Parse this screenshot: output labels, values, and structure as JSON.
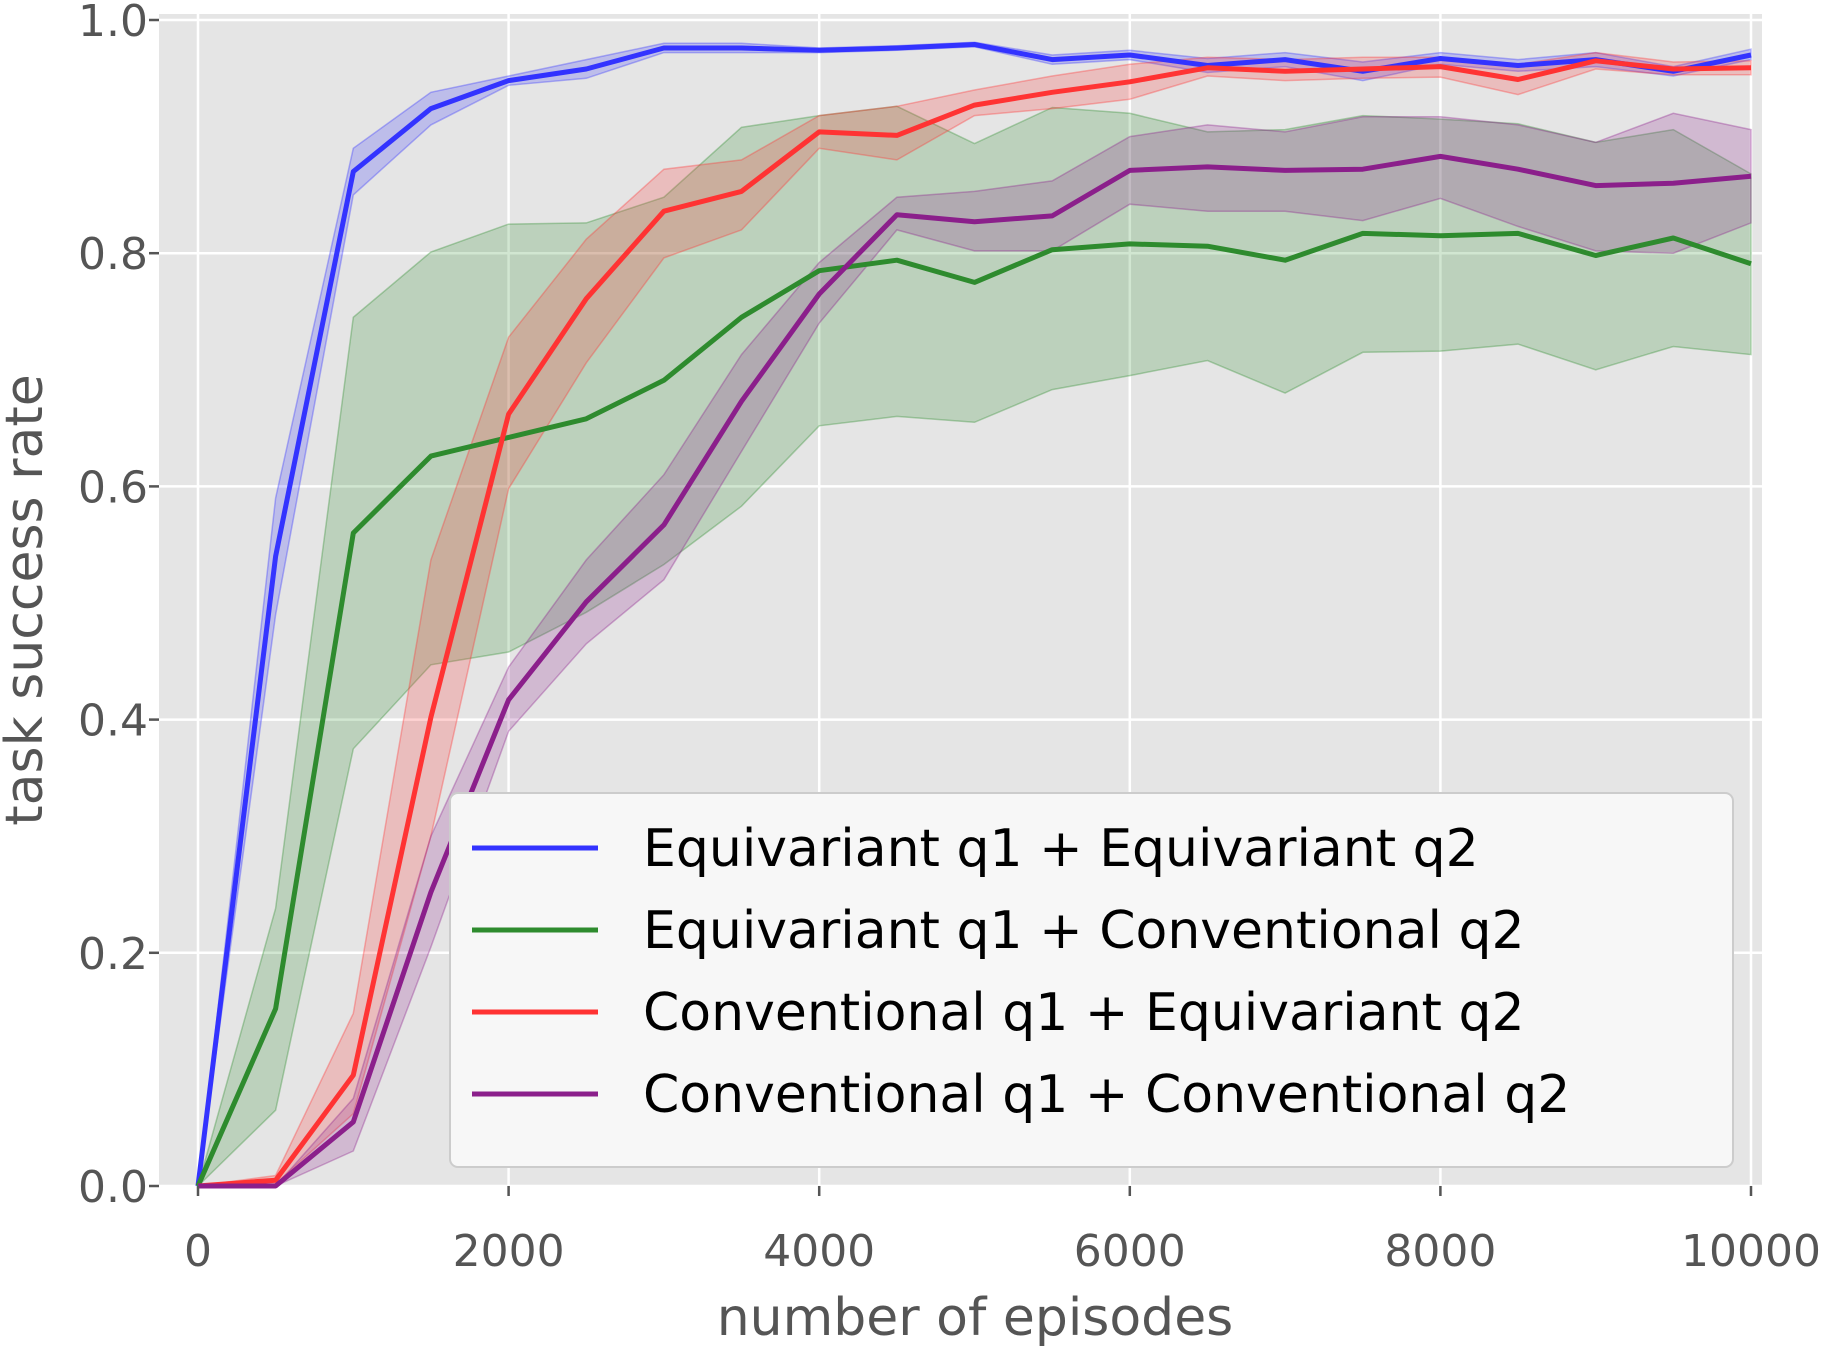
{
  "chart_data": {
    "type": "line",
    "xlabel": "number of episodes",
    "ylabel": "task success rate",
    "xlim": [
      -200,
      10200
    ],
    "ylim": [
      0.0,
      1.0
    ],
    "grid": true,
    "legend_position": "lower-right",
    "x_ticks": [
      0,
      2000,
      4000,
      6000,
      8000,
      10000
    ],
    "x_tick_labels": [
      "0",
      "2000",
      "4000",
      "6000",
      "8000",
      "10000"
    ],
    "y_ticks": [
      0.0,
      0.2,
      0.4,
      0.6,
      0.8,
      1.0
    ],
    "y_tick_labels": [
      "0.0",
      "0.2",
      "0.4",
      "0.6",
      "0.8",
      "1.0"
    ],
    "x": [
      0,
      500,
      1000,
      1500,
      2000,
      2500,
      3000,
      3500,
      4000,
      4500,
      5000,
      5500,
      6000,
      6500,
      7000,
      7500,
      8000,
      8500,
      9000,
      9500,
      10000
    ],
    "series": [
      {
        "name": "Equivariant q1 + Equivariant q2",
        "color": "#3333ff",
        "values": [
          0.0,
          0.54,
          0.87,
          0.924,
          0.948,
          0.958,
          0.976,
          0.976,
          0.974,
          0.976,
          0.979,
          0.966,
          0.97,
          0.961,
          0.966,
          0.956,
          0.967,
          0.961,
          0.966,
          0.956,
          0.97
        ],
        "lower": [
          0.0,
          0.49,
          0.85,
          0.91,
          0.944,
          0.95,
          0.972,
          0.972,
          0.972,
          0.974,
          0.977,
          0.962,
          0.966,
          0.955,
          0.96,
          0.948,
          0.962,
          0.956,
          0.96,
          0.952,
          0.966
        ],
        "upper": [
          0.0,
          0.59,
          0.89,
          0.938,
          0.952,
          0.966,
          0.98,
          0.98,
          0.976,
          0.978,
          0.981,
          0.97,
          0.974,
          0.967,
          0.972,
          0.964,
          0.972,
          0.966,
          0.972,
          0.96,
          0.975
        ]
      },
      {
        "name": "Equivariant q1 + Conventional q2",
        "color": "#2e8b2e",
        "values": [
          0.0,
          0.152,
          0.56,
          0.626,
          0.642,
          0.658,
          0.691,
          0.745,
          0.785,
          0.794,
          0.775,
          0.803,
          0.808,
          0.806,
          0.794,
          0.817,
          0.815,
          0.817,
          0.798,
          0.813,
          0.791
        ],
        "lower": [
          0.0,
          0.065,
          0.375,
          0.447,
          0.458,
          0.492,
          0.533,
          0.583,
          0.652,
          0.66,
          0.655,
          0.683,
          0.695,
          0.708,
          0.68,
          0.715,
          0.716,
          0.722,
          0.7,
          0.72,
          0.713
        ],
        "upper": [
          0.0,
          0.238,
          0.745,
          0.801,
          0.825,
          0.826,
          0.848,
          0.908,
          0.918,
          0.926,
          0.894,
          0.925,
          0.92,
          0.904,
          0.906,
          0.918,
          0.915,
          0.911,
          0.895,
          0.906,
          0.868
        ]
      },
      {
        "name": "Conventional q1 + Equivariant q2",
        "color": "#ff3333",
        "values": [
          0.0,
          0.005,
          0.095,
          0.402,
          0.662,
          0.761,
          0.836,
          0.853,
          0.904,
          0.901,
          0.927,
          0.938,
          0.947,
          0.959,
          0.956,
          0.958,
          0.96,
          0.949,
          0.965,
          0.958,
          0.959
        ],
        "lower": [
          0.0,
          0.002,
          0.062,
          0.3,
          0.598,
          0.706,
          0.796,
          0.82,
          0.89,
          0.88,
          0.918,
          0.924,
          0.932,
          0.952,
          0.948,
          0.95,
          0.951,
          0.936,
          0.958,
          0.953,
          0.953
        ],
        "upper": [
          0.0,
          0.009,
          0.148,
          0.537,
          0.728,
          0.812,
          0.872,
          0.88,
          0.918,
          0.926,
          0.94,
          0.952,
          0.962,
          0.968,
          0.966,
          0.968,
          0.968,
          0.962,
          0.972,
          0.964,
          0.965
        ]
      },
      {
        "name": "Conventional q1 + Conventional q2",
        "color": "#8b1f8b",
        "values": [
          0.0,
          0.0,
          0.055,
          0.252,
          0.417,
          0.501,
          0.567,
          0.673,
          0.765,
          0.833,
          0.827,
          0.832,
          0.871,
          0.874,
          0.871,
          0.872,
          0.883,
          0.872,
          0.858,
          0.86,
          0.866
        ],
        "lower": [
          0.0,
          0.0,
          0.03,
          0.205,
          0.39,
          0.465,
          0.52,
          0.63,
          0.74,
          0.82,
          0.802,
          0.802,
          0.842,
          0.836,
          0.836,
          0.828,
          0.847,
          0.823,
          0.802,
          0.8,
          0.826
        ],
        "upper": [
          0.0,
          0.0,
          0.075,
          0.3,
          0.445,
          0.537,
          0.61,
          0.713,
          0.792,
          0.848,
          0.853,
          0.862,
          0.9,
          0.91,
          0.904,
          0.917,
          0.917,
          0.91,
          0.895,
          0.92,
          0.906
        ]
      }
    ]
  }
}
